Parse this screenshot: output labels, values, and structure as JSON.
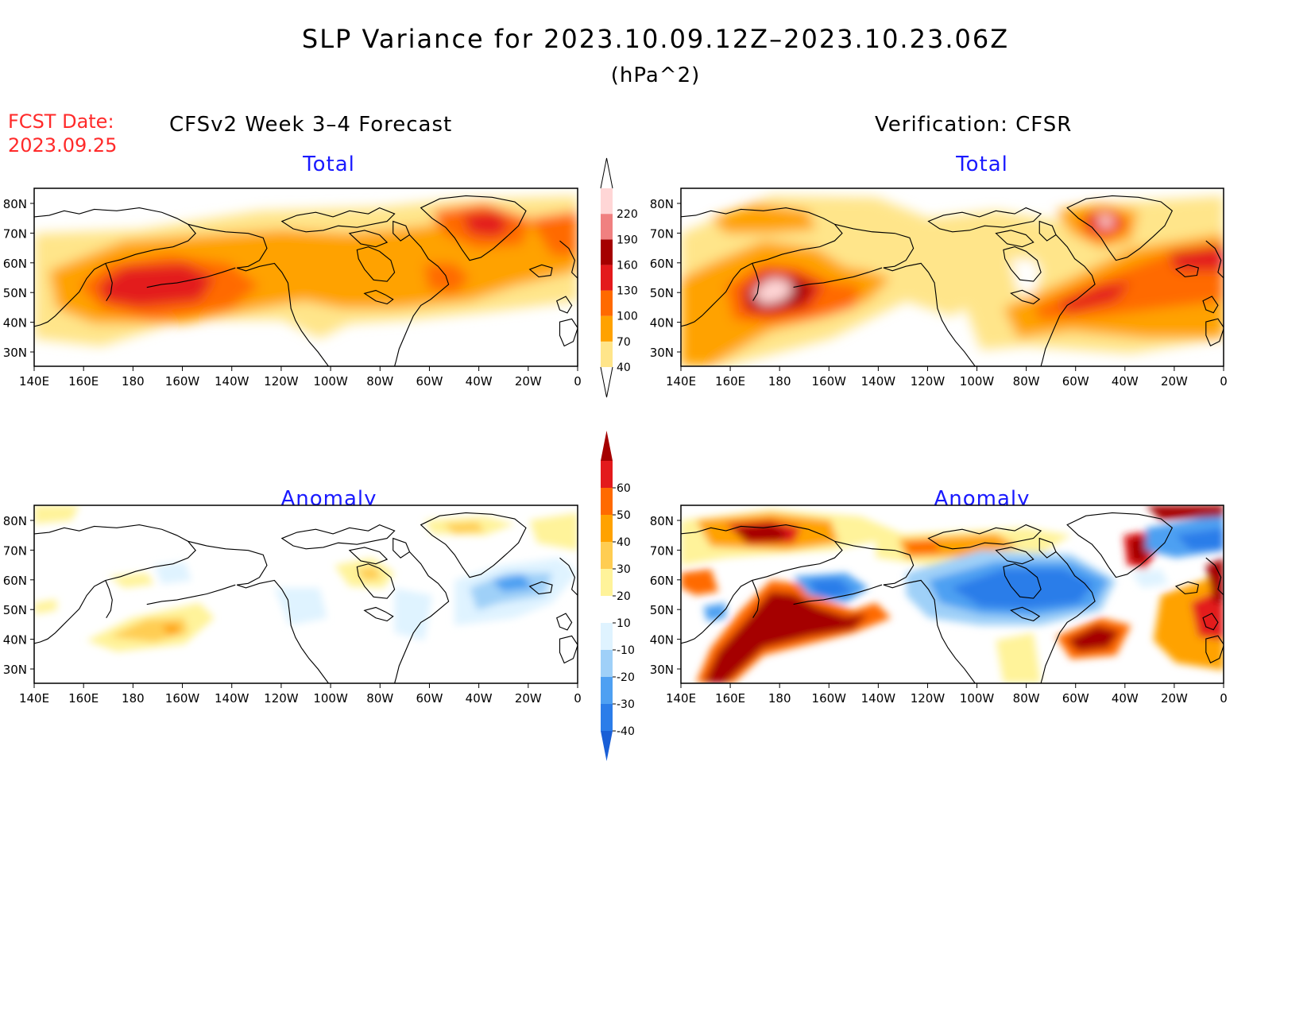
{
  "title": "SLP Variance for 2023.10.09.12Z–2023.10.23.06Z",
  "units": "(hPa^2)",
  "fcst_date_label": "FCST Date:",
  "fcst_date": "2023.09.25",
  "left_column_title": "CFSv2 Week 3–4 Forecast",
  "right_column_title": "Verification: CFSR",
  "panel_titles": {
    "total": "Total",
    "anomaly": "Anomaly"
  },
  "lat_labels": [
    "80N",
    "70N",
    "60N",
    "50N",
    "40N",
    "30N"
  ],
  "lon_labels": [
    "140E",
    "160E",
    "180",
    "160W",
    "140W",
    "120W",
    "100W",
    "80W",
    "60W",
    "40W",
    "20W",
    "0"
  ],
  "total_colorbar": {
    "levels": [
      "40",
      "70",
      "100",
      "130",
      "160",
      "190",
      "220"
    ],
    "colors": [
      "#ffe58a",
      "#ffa200",
      "#ff6a00",
      "#e31a1c",
      "#a50000",
      "#f08080",
      "#ffd6d6"
    ]
  },
  "anomaly_colorbar": {
    "levels": [
      "-40",
      "-30",
      "-20",
      "-10",
      "10",
      "20",
      "30",
      "40",
      "50",
      "60"
    ],
    "colors": [
      "#1a5fd6",
      "#2b7de9",
      "#4ea0f2",
      "#9fd0f8",
      "#dff3ff",
      "#ffffff",
      "#fff39a",
      "#ffcd52",
      "#ffa200",
      "#ff6a00",
      "#e31a1c",
      "#a50000"
    ]
  },
  "colors": {
    "fcst_date": "#ff2a2a",
    "panel_title": "#1a1aff"
  }
}
